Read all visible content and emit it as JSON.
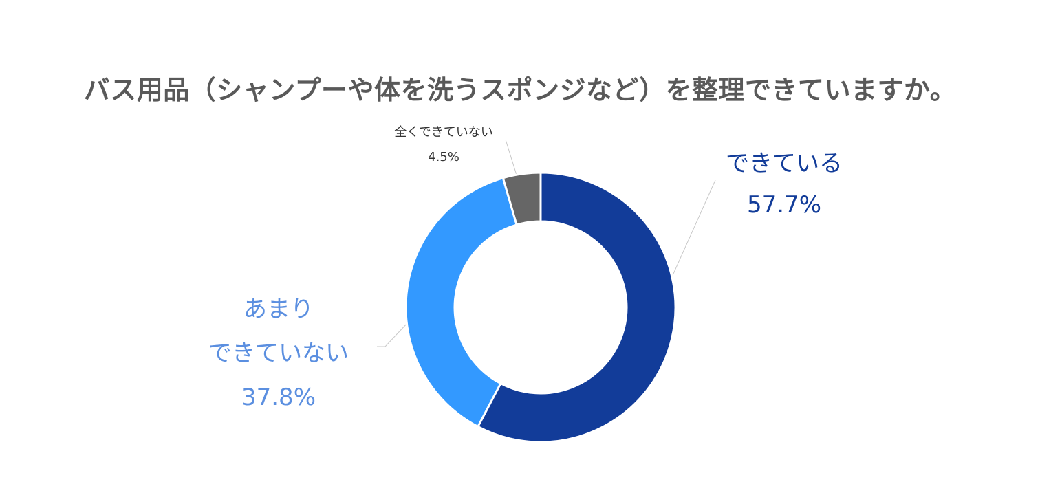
{
  "title": "バス用品（シャンプーや体を洗うスポンジなど）を整理できていますか。",
  "chart_data": {
    "type": "pie",
    "title": "バス用品（シャンプーや体を洗うスポンジなど）を整理できていますか。",
    "series": [
      {
        "values": [
          57.7,
          37.8,
          4.5
        ]
      }
    ],
    "categories": [
      "できている",
      "あまりできていない",
      "全くできていない"
    ],
    "slices": [
      {
        "name": "できている",
        "label_lines": [
          "できている"
        ],
        "value": 57.7,
        "value_label": "57.7%",
        "color": "#123c99"
      },
      {
        "name": "あまりできていない",
        "label_lines": [
          "あまり",
          "できていない"
        ],
        "value": 37.8,
        "value_label": "37.8%",
        "color": "#3399ff"
      },
      {
        "name": "全くできていない",
        "label_lines": [
          "全くできていない"
        ],
        "value": 4.5,
        "value_label": "4.5%",
        "color": "#666666"
      }
    ],
    "legend": "none",
    "label_colors": [
      "#123c99",
      "#5b8fe0",
      "#333333"
    ]
  }
}
